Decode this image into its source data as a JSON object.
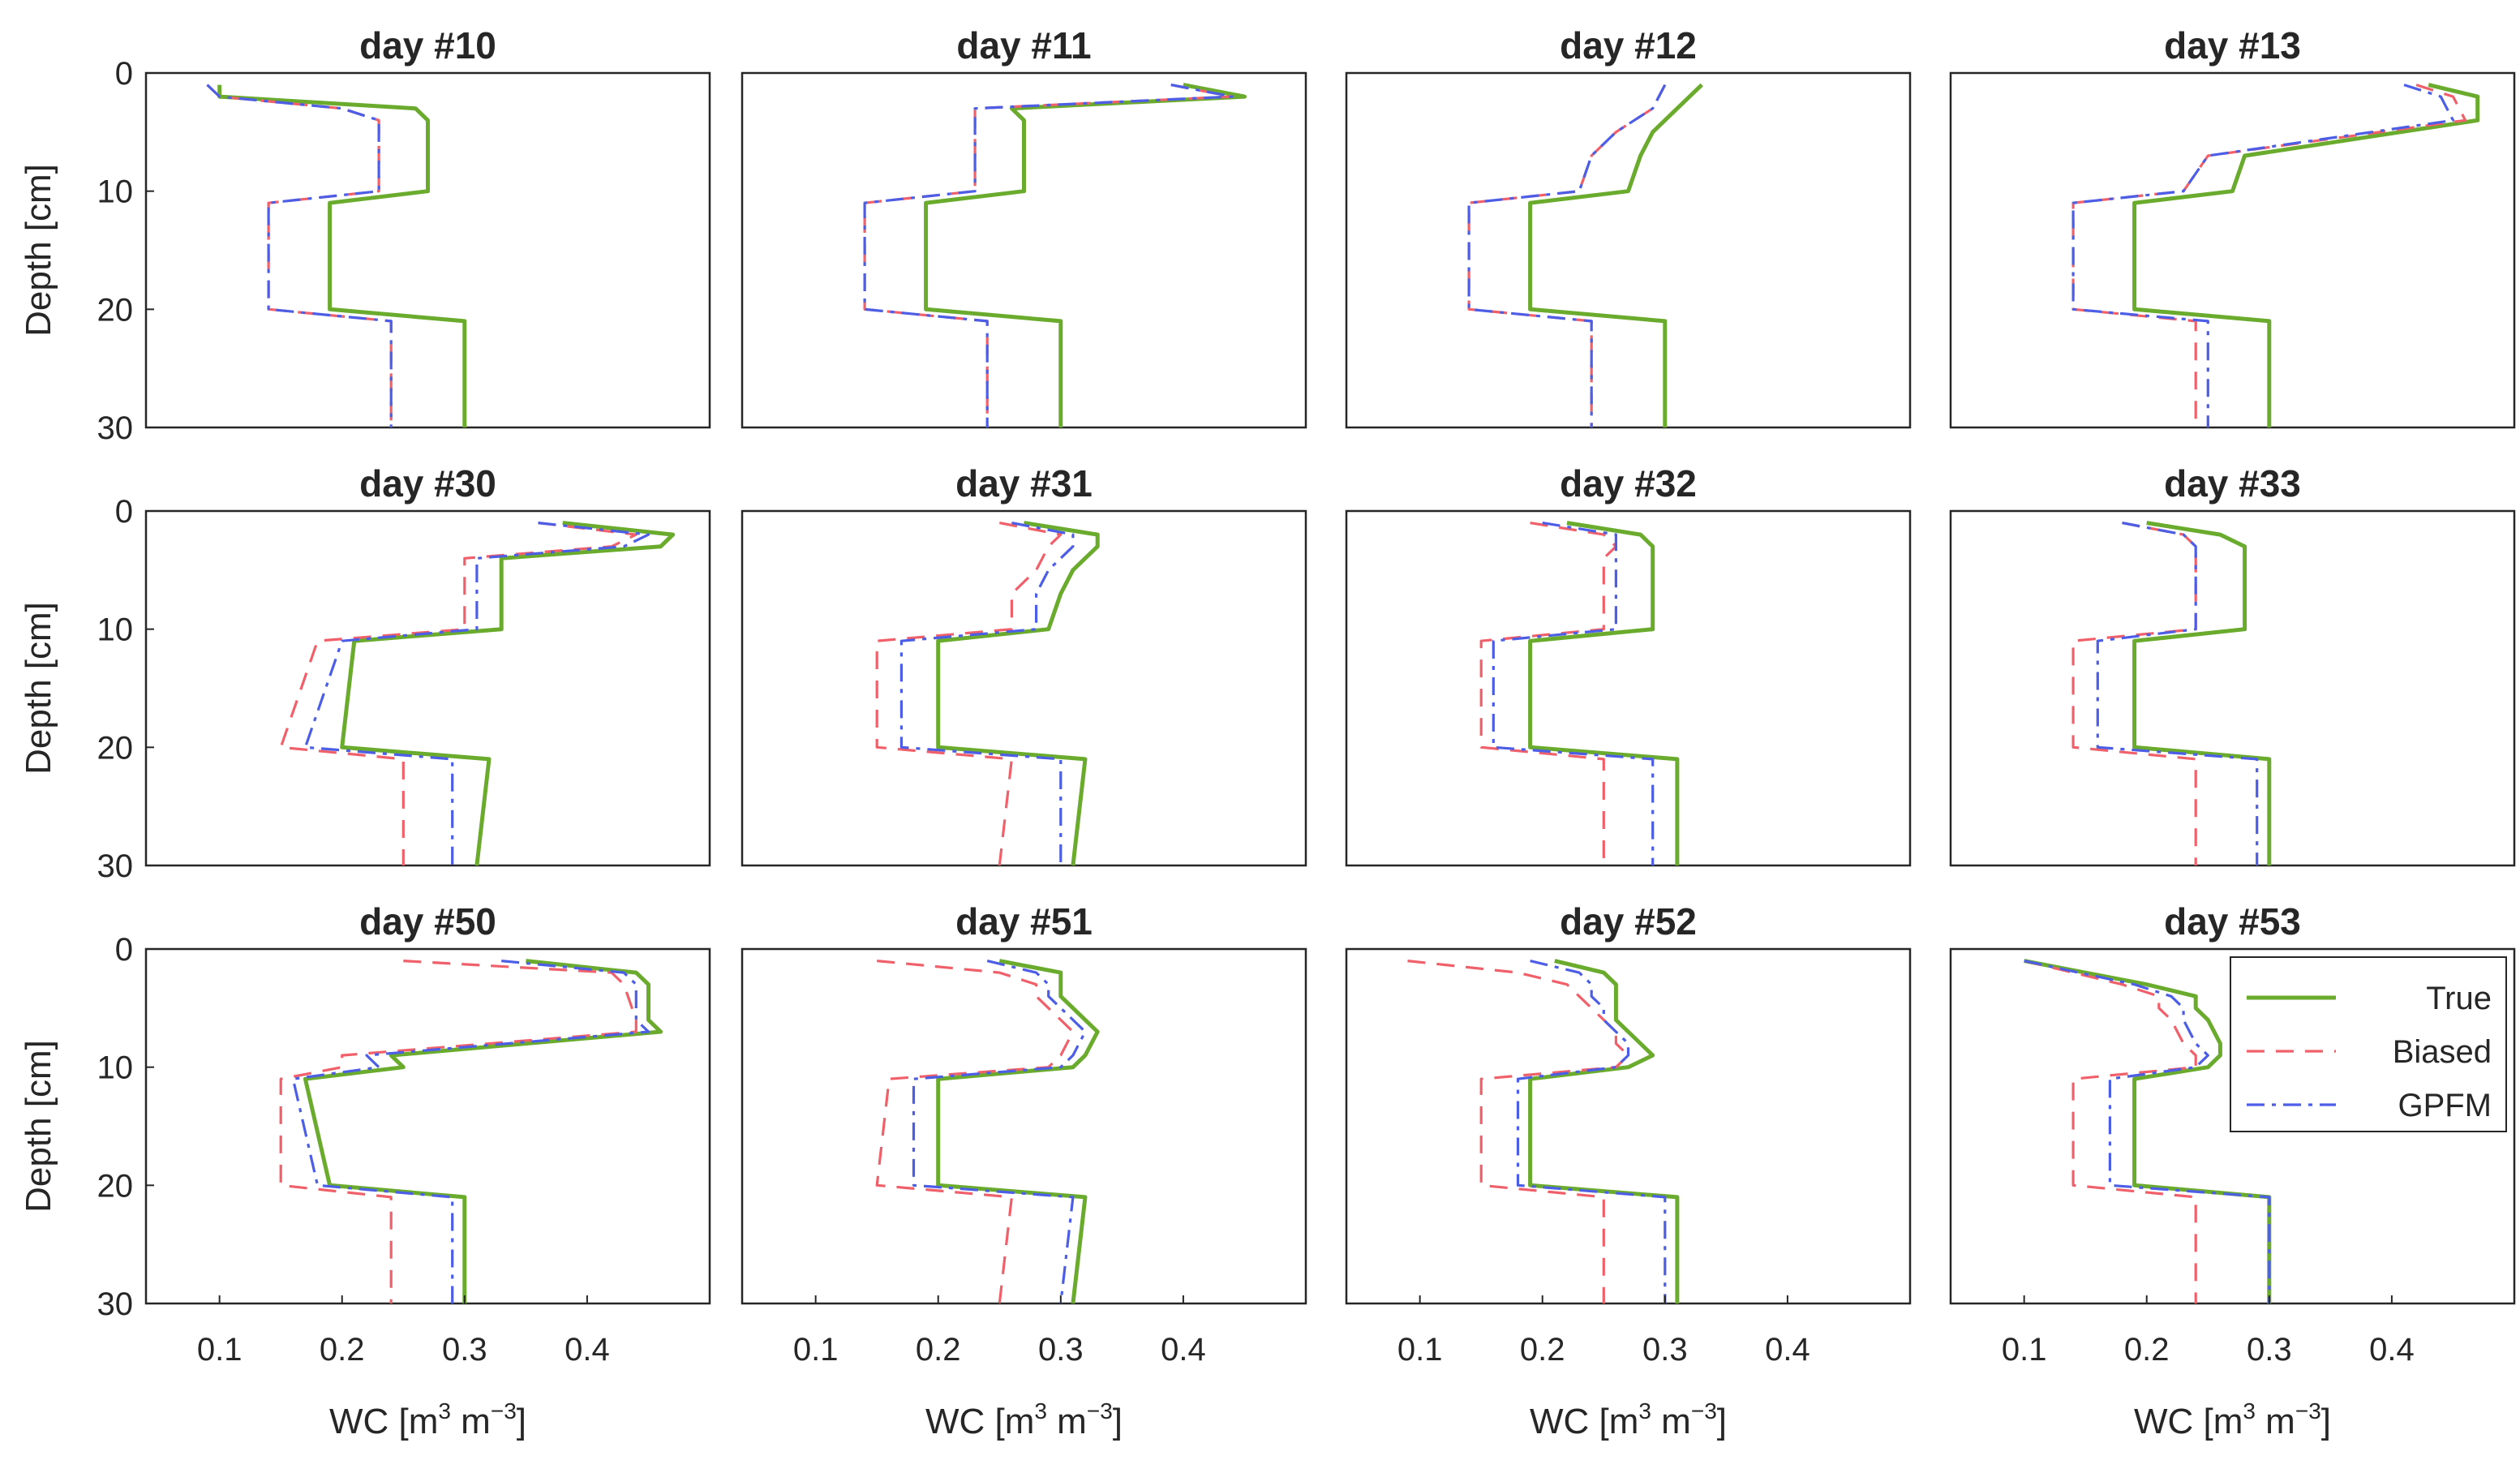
{
  "chart_data": {
    "type": "line",
    "layout": "3x4 small multiples",
    "xlabel": {
      "prefix": "WC [m",
      "sup1": "3",
      "mid": " m",
      "sup2": "−3",
      "suffix": "]"
    },
    "ylabel": "Depth [cm]",
    "xlim": [
      0.04,
      0.5
    ],
    "ylim": [
      0,
      30
    ],
    "y_reversed": true,
    "xticks": [
      0.1,
      0.2,
      0.3,
      0.4
    ],
    "xtick_labels": [
      "0.1",
      "0.2",
      "0.3",
      "0.4"
    ],
    "yticks": [
      0,
      10,
      20,
      30
    ],
    "ytick_labels": [
      "0",
      "10",
      "20",
      "30"
    ],
    "series_styles": [
      {
        "name": "True",
        "color": "#6aab2e",
        "dash": "solid"
      },
      {
        "name": "Biased",
        "color": "#f0606a",
        "dash": "dashed"
      },
      {
        "name": "GPFM",
        "color": "#4c5ee6",
        "dash": "dashdot"
      }
    ],
    "legend": {
      "entries": [
        "True",
        "Biased",
        "GPFM"
      ],
      "location": "inside panel day #53, top-right"
    },
    "panels": [
      {
        "title": "day #10",
        "true": {
          "depth": [
            1,
            2,
            3,
            4,
            10,
            11,
            20,
            21,
            30
          ],
          "wc": [
            0.1,
            0.1,
            0.26,
            0.27,
            0.27,
            0.19,
            0.19,
            0.3,
            0.3
          ]
        },
        "biased": {
          "depth": [
            1,
            2,
            3,
            4,
            10,
            11,
            20,
            21,
            30
          ],
          "wc": [
            0.09,
            0.1,
            0.2,
            0.23,
            0.23,
            0.14,
            0.14,
            0.24,
            0.24
          ]
        },
        "gpfm": {
          "depth": [
            1,
            2,
            3,
            4,
            10,
            11,
            20,
            21,
            30
          ],
          "wc": [
            0.09,
            0.1,
            0.2,
            0.23,
            0.23,
            0.14,
            0.14,
            0.24,
            0.24
          ]
        }
      },
      {
        "title": "day #11",
        "true": {
          "depth": [
            1,
            2,
            3,
            4,
            10,
            11,
            20,
            21,
            30
          ],
          "wc": [
            0.4,
            0.45,
            0.26,
            0.27,
            0.27,
            0.19,
            0.19,
            0.3,
            0.3
          ]
        },
        "biased": {
          "depth": [
            1,
            2,
            3,
            4,
            10,
            11,
            20,
            21,
            30
          ],
          "wc": [
            0.39,
            0.44,
            0.23,
            0.23,
            0.23,
            0.14,
            0.14,
            0.24,
            0.24
          ]
        },
        "gpfm": {
          "depth": [
            1,
            2,
            3,
            4,
            10,
            11,
            20,
            21,
            30
          ],
          "wc": [
            0.39,
            0.44,
            0.23,
            0.23,
            0.23,
            0.14,
            0.14,
            0.24,
            0.24
          ]
        }
      },
      {
        "title": "day #12",
        "true": {
          "depth": [
            1,
            3,
            5,
            7,
            10,
            11,
            20,
            21,
            30
          ],
          "wc": [
            0.33,
            0.31,
            0.29,
            0.28,
            0.27,
            0.19,
            0.19,
            0.3,
            0.3
          ]
        },
        "biased": {
          "depth": [
            1,
            3,
            5,
            7,
            10,
            11,
            20,
            21,
            30
          ],
          "wc": [
            0.3,
            0.29,
            0.26,
            0.24,
            0.23,
            0.14,
            0.14,
            0.24,
            0.24
          ]
        },
        "gpfm": {
          "depth": [
            1,
            3,
            5,
            7,
            10,
            11,
            20,
            21,
            30
          ],
          "wc": [
            0.3,
            0.29,
            0.26,
            0.24,
            0.23,
            0.14,
            0.14,
            0.24,
            0.24
          ]
        }
      },
      {
        "title": "day #13",
        "true": {
          "depth": [
            1,
            2,
            4,
            7,
            10,
            11,
            20,
            21,
            30
          ],
          "wc": [
            0.43,
            0.47,
            0.47,
            0.28,
            0.27,
            0.19,
            0.19,
            0.3,
            0.3
          ]
        },
        "biased": {
          "depth": [
            1,
            2,
            4,
            7,
            10,
            11,
            20,
            21,
            30
          ],
          "wc": [
            0.42,
            0.45,
            0.46,
            0.25,
            0.23,
            0.14,
            0.14,
            0.24,
            0.24
          ]
        },
        "gpfm": {
          "depth": [
            1,
            2,
            4,
            7,
            10,
            11,
            20,
            21,
            30
          ],
          "wc": [
            0.41,
            0.44,
            0.45,
            0.25,
            0.23,
            0.14,
            0.14,
            0.25,
            0.25
          ]
        }
      },
      {
        "title": "day #30",
        "true": {
          "depth": [
            1,
            2,
            3,
            4,
            10,
            11,
            20,
            21,
            30
          ],
          "wc": [
            0.38,
            0.47,
            0.46,
            0.33,
            0.33,
            0.21,
            0.2,
            0.32,
            0.31
          ]
        },
        "biased": {
          "depth": [
            1,
            2,
            3,
            4,
            10,
            11,
            20,
            21,
            30
          ],
          "wc": [
            0.36,
            0.44,
            0.42,
            0.3,
            0.3,
            0.18,
            0.15,
            0.25,
            0.25
          ]
        },
        "gpfm": {
          "depth": [
            1,
            2,
            3,
            4,
            10,
            11,
            20,
            21,
            30
          ],
          "wc": [
            0.36,
            0.45,
            0.43,
            0.31,
            0.31,
            0.2,
            0.17,
            0.29,
            0.29
          ]
        }
      },
      {
        "title": "day #31",
        "true": {
          "depth": [
            1,
            2,
            3,
            5,
            7,
            10,
            11,
            20,
            21,
            30
          ],
          "wc": [
            0.27,
            0.33,
            0.33,
            0.31,
            0.3,
            0.29,
            0.2,
            0.2,
            0.32,
            0.31
          ]
        },
        "biased": {
          "depth": [
            1,
            2,
            3,
            5,
            7,
            10,
            11,
            20,
            21,
            30
          ],
          "wc": [
            0.25,
            0.3,
            0.29,
            0.28,
            0.26,
            0.26,
            0.15,
            0.15,
            0.26,
            0.25
          ]
        },
        "gpfm": {
          "depth": [
            1,
            2,
            3,
            5,
            7,
            10,
            11,
            20,
            21,
            30
          ],
          "wc": [
            0.26,
            0.31,
            0.31,
            0.29,
            0.28,
            0.28,
            0.17,
            0.17,
            0.3,
            0.3
          ]
        }
      },
      {
        "title": "day #32",
        "true": {
          "depth": [
            1,
            2,
            3,
            4,
            10,
            11,
            20,
            21,
            30
          ],
          "wc": [
            0.22,
            0.28,
            0.29,
            0.29,
            0.29,
            0.19,
            0.19,
            0.31,
            0.31
          ]
        },
        "biased": {
          "depth": [
            1,
            2,
            3,
            4,
            10,
            11,
            20,
            21,
            30
          ],
          "wc": [
            0.19,
            0.25,
            0.26,
            0.25,
            0.25,
            0.15,
            0.15,
            0.25,
            0.25
          ]
        },
        "gpfm": {
          "depth": [
            1,
            2,
            3,
            4,
            10,
            11,
            20,
            21,
            30
          ],
          "wc": [
            0.2,
            0.26,
            0.26,
            0.26,
            0.26,
            0.16,
            0.16,
            0.29,
            0.29
          ]
        }
      },
      {
        "title": "day #33",
        "true": {
          "depth": [
            1,
            2,
            3,
            4,
            10,
            11,
            20,
            21,
            30
          ],
          "wc": [
            0.2,
            0.26,
            0.28,
            0.28,
            0.28,
            0.19,
            0.19,
            0.3,
            0.3
          ]
        },
        "biased": {
          "depth": [
            1,
            2,
            3,
            4,
            10,
            11,
            20,
            21,
            30
          ],
          "wc": [
            0.18,
            0.23,
            0.24,
            0.24,
            0.24,
            0.14,
            0.14,
            0.24,
            0.24
          ]
        },
        "gpfm": {
          "depth": [
            1,
            2,
            3,
            4,
            10,
            11,
            20,
            21,
            30
          ],
          "wc": [
            0.18,
            0.23,
            0.24,
            0.24,
            0.24,
            0.16,
            0.16,
            0.29,
            0.29
          ]
        }
      },
      {
        "title": "day #50",
        "true": {
          "depth": [
            1,
            2,
            3,
            6,
            7,
            9,
            10,
            11,
            20,
            21,
            30
          ],
          "wc": [
            0.35,
            0.44,
            0.45,
            0.45,
            0.46,
            0.24,
            0.25,
            0.17,
            0.19,
            0.3,
            0.3
          ]
        },
        "biased": {
          "depth": [
            1,
            2,
            3,
            6,
            7,
            9,
            10,
            11,
            20,
            21,
            30
          ],
          "wc": [
            0.25,
            0.42,
            0.43,
            0.44,
            0.44,
            0.2,
            0.2,
            0.15,
            0.15,
            0.24,
            0.24
          ]
        },
        "gpfm": {
          "depth": [
            1,
            2,
            3,
            6,
            7,
            9,
            10,
            11,
            20,
            21,
            30
          ],
          "wc": [
            0.33,
            0.43,
            0.44,
            0.44,
            0.45,
            0.22,
            0.23,
            0.16,
            0.18,
            0.29,
            0.29
          ]
        }
      },
      {
        "title": "day #51",
        "true": {
          "depth": [
            1,
            2,
            3,
            4,
            5,
            6,
            7,
            9,
            10,
            11,
            20,
            21,
            30
          ],
          "wc": [
            0.25,
            0.3,
            0.3,
            0.3,
            0.31,
            0.32,
            0.33,
            0.32,
            0.31,
            0.2,
            0.2,
            0.32,
            0.31
          ]
        },
        "biased": {
          "depth": [
            1,
            2,
            3,
            4,
            5,
            6,
            7,
            9,
            10,
            11,
            20,
            21,
            30
          ],
          "wc": [
            0.15,
            0.25,
            0.28,
            0.28,
            0.29,
            0.3,
            0.31,
            0.3,
            0.29,
            0.16,
            0.15,
            0.26,
            0.25
          ]
        },
        "gpfm": {
          "depth": [
            1,
            2,
            3,
            4,
            5,
            6,
            7,
            9,
            10,
            11,
            20,
            21,
            30
          ],
          "wc": [
            0.24,
            0.28,
            0.29,
            0.29,
            0.3,
            0.31,
            0.32,
            0.31,
            0.3,
            0.18,
            0.18,
            0.31,
            0.3
          ]
        }
      },
      {
        "title": "day #52",
        "true": {
          "depth": [
            1,
            2,
            3,
            4,
            5,
            6,
            7,
            8,
            9,
            10,
            11,
            20,
            21,
            30
          ],
          "wc": [
            0.21,
            0.25,
            0.26,
            0.26,
            0.26,
            0.26,
            0.27,
            0.28,
            0.29,
            0.27,
            0.19,
            0.19,
            0.31,
            0.31
          ]
        },
        "biased": {
          "depth": [
            1,
            2,
            3,
            4,
            5,
            6,
            7,
            8,
            9,
            10,
            11,
            20,
            21,
            30
          ],
          "wc": [
            0.09,
            0.18,
            0.22,
            0.23,
            0.24,
            0.25,
            0.26,
            0.26,
            0.27,
            0.26,
            0.15,
            0.15,
            0.25,
            0.25
          ]
        },
        "gpfm": {
          "depth": [
            1,
            2,
            3,
            4,
            5,
            6,
            7,
            8,
            9,
            10,
            11,
            20,
            21,
            30
          ],
          "wc": [
            0.19,
            0.23,
            0.24,
            0.24,
            0.25,
            0.25,
            0.26,
            0.27,
            0.27,
            0.26,
            0.18,
            0.18,
            0.3,
            0.3
          ]
        }
      },
      {
        "title": "day #53",
        "true": {
          "depth": [
            1,
            3,
            4,
            5,
            6,
            8,
            9,
            10,
            11,
            20,
            21,
            30
          ],
          "wc": [
            0.1,
            0.2,
            0.24,
            0.24,
            0.25,
            0.26,
            0.26,
            0.25,
            0.19,
            0.19,
            0.3,
            0.3
          ]
        },
        "biased": {
          "depth": [
            1,
            3,
            4,
            5,
            6,
            8,
            9,
            10,
            11,
            20,
            21,
            30
          ],
          "wc": [
            0.1,
            0.18,
            0.21,
            0.21,
            0.22,
            0.23,
            0.24,
            0.24,
            0.14,
            0.14,
            0.24,
            0.24
          ]
        },
        "gpfm": {
          "depth": [
            1,
            3,
            4,
            5,
            6,
            8,
            9,
            10,
            11,
            20,
            21,
            30
          ],
          "wc": [
            0.1,
            0.19,
            0.22,
            0.23,
            0.23,
            0.24,
            0.25,
            0.24,
            0.17,
            0.17,
            0.3,
            0.3
          ]
        }
      }
    ]
  }
}
